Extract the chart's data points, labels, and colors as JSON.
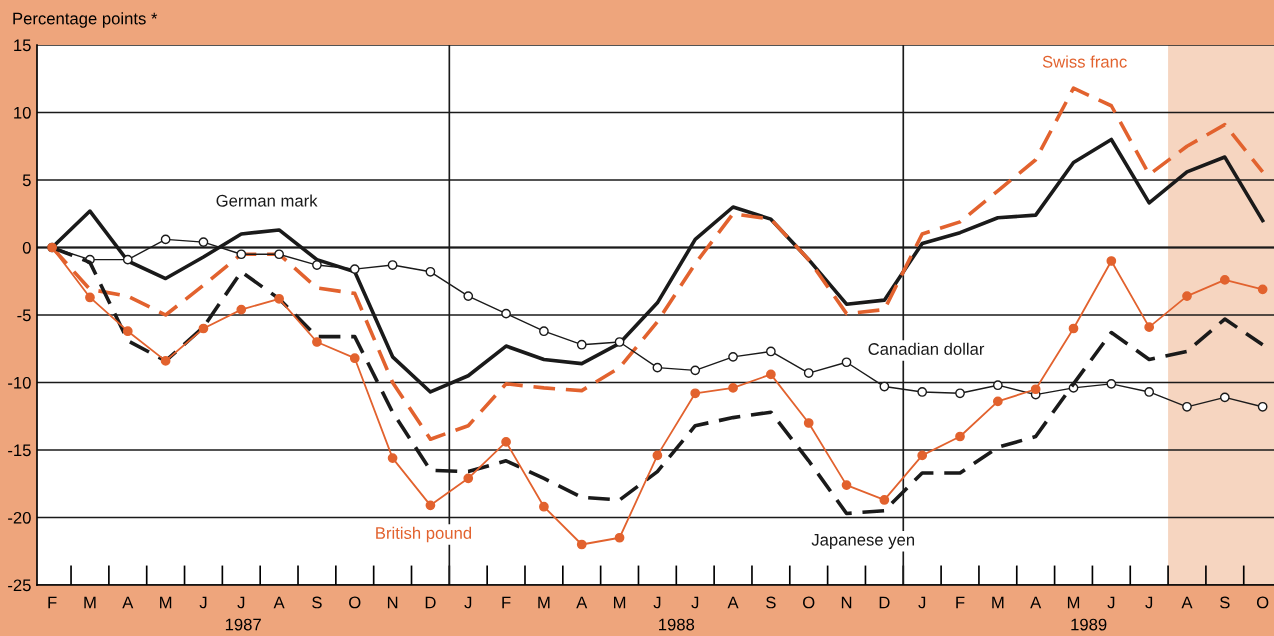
{
  "chart_data": {
    "type": "line",
    "ylabel": "Percentage points *",
    "categories": [
      "F",
      "M",
      "A",
      "M",
      "J",
      "J",
      "A",
      "S",
      "O",
      "N",
      "D",
      "J",
      "F",
      "M",
      "A",
      "M",
      "J",
      "J",
      "A",
      "S",
      "O",
      "N",
      "D",
      "J",
      "F",
      "M",
      "A",
      "M",
      "J",
      "J",
      "A",
      "S",
      "O"
    ],
    "series": [
      {
        "name": "German mark",
        "color": "#1a1a1a",
        "line_style": "solid",
        "marker": "none",
        "values": [
          0,
          2.7,
          -1.0,
          -2.3,
          -0.7,
          1.0,
          1.3,
          -0.9,
          -1.8,
          -8.1,
          -10.7,
          -9.5,
          -7.3,
          -8.3,
          -8.6,
          -7.1,
          -4.1,
          0.6,
          3.0,
          2.1,
          -0.9,
          -4.2,
          -3.9,
          0.3,
          1.1,
          2.2,
          2.4,
          6.3,
          8.0,
          3.3,
          5.6,
          6.7,
          2.0
        ]
      },
      {
        "name": "Swiss franc",
        "color": "#e2622e",
        "line_style": "dashed",
        "marker": "none",
        "values": [
          0,
          -3.1,
          -3.6,
          -5.0,
          -2.8,
          -0.5,
          -0.5,
          -3.0,
          -3.4,
          -10.0,
          -14.2,
          -13.2,
          -10.1,
          -10.4,
          -10.6,
          -8.9,
          -5.5,
          -1.2,
          2.5,
          2.1,
          -0.9,
          -4.9,
          -4.6,
          1.0,
          1.9,
          4.2,
          6.5,
          11.8,
          10.5,
          5.4,
          7.5,
          9.1,
          5.6
        ]
      },
      {
        "name": "Canadian dollar",
        "color": "#1a1a1a",
        "line_style": "solid",
        "marker": "circle",
        "values": [
          0,
          -0.9,
          -0.9,
          0.6,
          0.4,
          -0.5,
          -0.5,
          -1.3,
          -1.6,
          -1.3,
          -1.8,
          -3.6,
          -4.9,
          -6.2,
          -7.2,
          -7.0,
          -8.9,
          -9.1,
          -8.1,
          -7.7,
          -9.3,
          -8.5,
          -10.3,
          -10.7,
          -10.8,
          -10.2,
          -10.9,
          -10.4,
          -10.1,
          -10.7,
          -11.8,
          -11.1,
          -11.8
        ]
      },
      {
        "name": "Japanese yen",
        "color": "#1a1a1a",
        "line_style": "dashed",
        "marker": "none",
        "values": [
          0,
          -1.1,
          -6.9,
          -8.4,
          -5.9,
          -1.8,
          -3.8,
          -6.6,
          -6.6,
          -12.2,
          -16.5,
          -16.6,
          -15.8,
          -17.1,
          -18.5,
          -18.7,
          -16.6,
          -13.2,
          -12.6,
          -12.2,
          -15.8,
          -19.7,
          -19.5,
          -16.7,
          -16.7,
          -14.8,
          -14.0,
          -10.1,
          -6.3,
          -8.3,
          -7.7,
          -5.3,
          -7.2
        ]
      },
      {
        "name": "British pound",
        "color": "#e2622e",
        "line_style": "solid",
        "marker": "circle",
        "values": [
          0,
          -3.7,
          -6.2,
          -8.4,
          -6.0,
          -4.6,
          -3.8,
          -7.0,
          -8.2,
          -15.6,
          -19.1,
          -17.1,
          -14.4,
          -19.2,
          -22.0,
          -21.5,
          -15.4,
          -10.8,
          -10.4,
          -9.4,
          -13.0,
          -17.6,
          -18.7,
          -15.4,
          -14.0,
          -11.4,
          -10.5,
          -6.0,
          -1.0,
          -5.9,
          -3.6,
          -2.4,
          -3.1
        ]
      }
    ],
    "ylim": [
      -25,
      15
    ],
    "yticks": [
      -25,
      -20,
      -15,
      -10,
      -5,
      0,
      5,
      10,
      15
    ],
    "grid": "y",
    "legend": false,
    "annotations": [
      "1987",
      "1988",
      "1989"
    ]
  }
}
